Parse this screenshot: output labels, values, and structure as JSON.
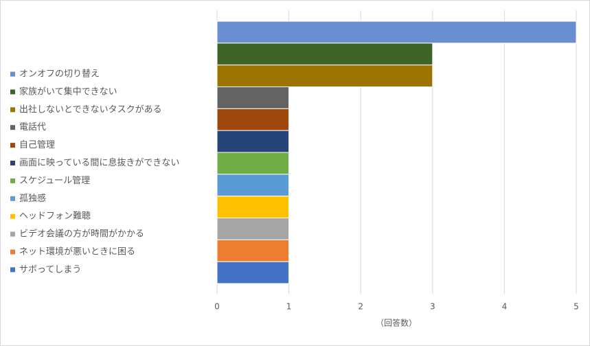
{
  "chart_data": {
    "type": "bar",
    "orientation": "horizontal",
    "categories": [
      "オンオフの切り替え",
      "家族がいて集中できない",
      "出社しないとできないタスクがある",
      "電話代",
      "自己管理",
      "画面に映っている間に息抜きができない",
      "スケジュール管理",
      "孤独感",
      "ヘッドフォン難聴",
      "ビデオ会議の方が時間がかかる",
      "ネット環境が悪いときに困る",
      "サボってしまう"
    ],
    "values": [
      5,
      3,
      3,
      1,
      1,
      1,
      1,
      1,
      1,
      1,
      1,
      1
    ],
    "colors": [
      "#6a8fd0",
      "#3f6427",
      "#9c7400",
      "#636363",
      "#9e480e",
      "#264478",
      "#70ad47",
      "#5b9bd5",
      "#ffc000",
      "#a5a5a5",
      "#ed7d31",
      "#4472c4"
    ],
    "xlabel": "（回答数）",
    "xlim": [
      0,
      5
    ],
    "xticks": [
      0,
      1,
      2,
      3,
      4,
      5
    ],
    "grid": true,
    "legend": "left"
  }
}
